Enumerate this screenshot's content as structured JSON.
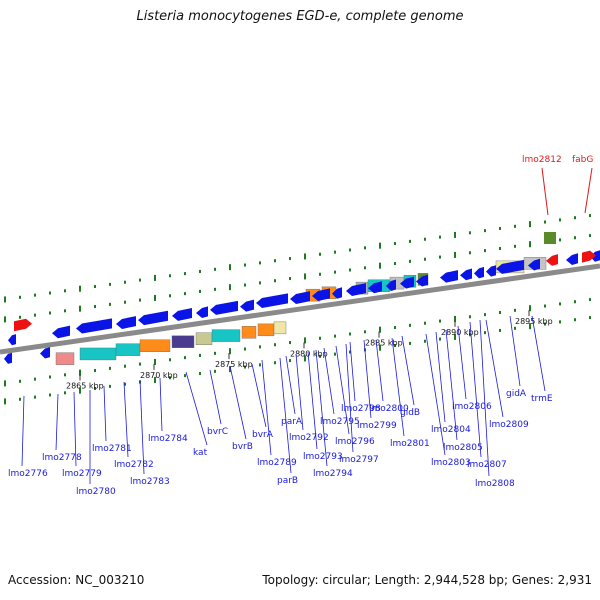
{
  "title": "Listeria monocytogenes EGD-e, complete genome",
  "footer": {
    "accession": "Accession: NC_003210",
    "summary": "Topology: circular; Length: 2,944,528 bp; Genes: 2,931"
  },
  "colors": {
    "backbone": "#8a8a8a",
    "gene_blue": "#0a14e6",
    "label_blue": "#1a1adc",
    "label_red": "#e01a1a",
    "gene_red": "#ee1111",
    "tick_green": "#1e7a1e"
  },
  "ruler": [
    "2865 kbp",
    "2870 kbp",
    "2875 kbp",
    "2880 kbp",
    "2885 kbp",
    "2890 kbp",
    "2895 kbp"
  ],
  "genes_red": [
    "lmo2812",
    "fabG"
  ],
  "genes_blue": [
    "lmo2776",
    "lmo2778",
    "lmo2779",
    "lmo2780",
    "lmo2781",
    "lmo2782",
    "lmo2783",
    "lmo2784",
    "kat",
    "bvrC",
    "bvrB",
    "bvrA",
    "lmo2789",
    "parB",
    "parA",
    "lmo2792",
    "lmo2793",
    "lmo2794",
    "lmo2795",
    "lmo2796",
    "lmo2797",
    "lmo2798",
    "lmo2799",
    "lmo2800",
    "lmo2801",
    "gidB",
    "lmo2803",
    "lmo2804",
    "lmo2805",
    "lmo2806",
    "lmo2807",
    "lmo2808",
    "lmo2809",
    "gidA",
    "trmE"
  ]
}
